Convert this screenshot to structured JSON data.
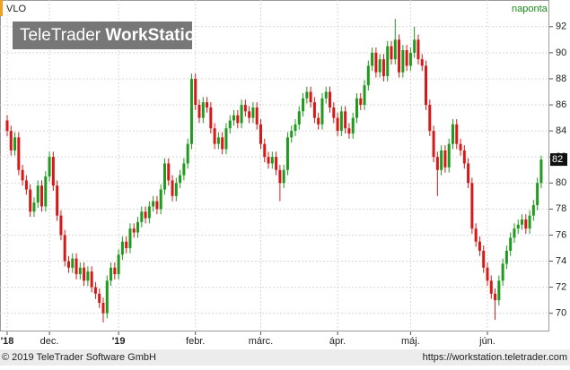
{
  "chart_data": {
    "type": "candlestick",
    "title": "VLO",
    "interval": "naponta",
    "categories": [
      "'18",
      null,
      null,
      null,
      null,
      null,
      null,
      null,
      null,
      null,
      null,
      "dec.",
      null,
      null,
      null,
      null,
      null,
      null,
      null,
      null,
      null,
      null,
      null,
      null,
      null,
      null,
      null,
      null,
      null,
      "'19",
      null,
      null,
      null,
      null,
      null,
      null,
      null,
      null,
      null,
      null,
      null,
      null,
      null,
      null,
      null,
      null,
      null,
      null,
      null,
      "febr.",
      null,
      null,
      null,
      null,
      null,
      null,
      null,
      null,
      null,
      null,
      null,
      null,
      null,
      null,
      null,
      null,
      "márc.",
      null,
      null,
      null,
      null,
      null,
      null,
      null,
      null,
      null,
      null,
      null,
      null,
      null,
      null,
      null,
      null,
      null,
      null,
      null,
      "ápr.",
      null,
      null,
      null,
      null,
      null,
      null,
      null,
      null,
      null,
      null,
      null,
      null,
      null,
      null,
      null,
      null,
      null,
      null,
      "máj.",
      null,
      null,
      null,
      null,
      null,
      null,
      null,
      null,
      null,
      null,
      null,
      null,
      null,
      null,
      null,
      null,
      null,
      null,
      null,
      "jún.",
      null,
      null,
      null,
      null,
      null,
      null,
      null,
      null,
      null,
      null,
      null,
      null,
      null,
      null
    ],
    "open": [
      84.8,
      84.0,
      82.5,
      83.5,
      81.0,
      80.2,
      79.5,
      77.8,
      78.5,
      79.8,
      78.2,
      80.5,
      82.0,
      79.8,
      77.5,
      76.0,
      74.0,
      73.5,
      74.2,
      73.0,
      73.5,
      72.5,
      73.2,
      72.0,
      71.5,
      70.8,
      70.0,
      72.5,
      73.5,
      73.0,
      74.5,
      75.5,
      75.0,
      76.5,
      76.2,
      77.0,
      77.8,
      77.3,
      78.2,
      78.6,
      78.0,
      79.5,
      81.5,
      80.2,
      79.0,
      80.0,
      80.6,
      81.5,
      83.0,
      88.0,
      86.0,
      85.0,
      86.2,
      85.8,
      84.2,
      83.0,
      83.5,
      82.6,
      84.2,
      84.8,
      85.2,
      84.6,
      86.0,
      85.5,
      85.0,
      85.8,
      84.5,
      83.0,
      82.0,
      81.5,
      82.0,
      81.0,
      80.0,
      81.0,
      83.5,
      84.0,
      84.5,
      85.5,
      86.5,
      87.0,
      86.2,
      85.0,
      84.5,
      86.5,
      87.0,
      85.8,
      85.0,
      84.0,
      85.5,
      84.2,
      83.8,
      85.0,
      86.5,
      86.0,
      87.5,
      89.0,
      90.0,
      88.5,
      89.5,
      88.2,
      90.5,
      89.5,
      91.0,
      88.5,
      90.2,
      89.0,
      90.0,
      91.0,
      89.5,
      89.0,
      86.0,
      84.0,
      82.0,
      81.0,
      82.5,
      81.2,
      83.0,
      84.5,
      83.0,
      82.5,
      81.5,
      80.0,
      76.5,
      75.5,
      74.8,
      73.5,
      72.5,
      71.5,
      71.0,
      72.5,
      73.8,
      74.8,
      75.8,
      76.5,
      76.8,
      77.2,
      76.5,
      77.5,
      78.3,
      80.0
    ],
    "high": [
      85.2,
      84.4,
      83.9,
      83.9,
      81.4,
      80.6,
      79.9,
      78.9,
      80.2,
      80.2,
      80.9,
      82.4,
      82.4,
      80.2,
      77.9,
      76.4,
      74.4,
      74.6,
      74.6,
      73.9,
      73.9,
      73.6,
      73.6,
      72.4,
      71.9,
      71.2,
      72.9,
      73.9,
      73.9,
      74.9,
      75.9,
      75.9,
      76.9,
      76.9,
      77.4,
      78.2,
      78.2,
      78.6,
      79.0,
      79.0,
      79.9,
      81.9,
      81.9,
      80.6,
      80.4,
      81.0,
      81.9,
      83.4,
      88.4,
      88.4,
      86.4,
      86.6,
      86.6,
      86.2,
      84.6,
      83.9,
      83.9,
      84.6,
      85.2,
      85.6,
      85.6,
      86.4,
      86.4,
      85.9,
      86.2,
      86.2,
      84.9,
      83.4,
      82.4,
      82.4,
      82.4,
      81.4,
      81.4,
      83.9,
      84.4,
      84.9,
      85.9,
      86.9,
      87.4,
      87.4,
      86.6,
      85.4,
      86.9,
      87.4,
      87.4,
      86.2,
      85.4,
      85.9,
      85.9,
      84.6,
      85.4,
      86.9,
      86.9,
      87.9,
      89.4,
      90.4,
      90.4,
      89.9,
      89.9,
      90.9,
      90.9,
      92.6,
      91.4,
      90.6,
      90.6,
      90.4,
      92.0,
      91.4,
      89.9,
      89.4,
      86.4,
      84.4,
      82.4,
      82.9,
      82.9,
      83.4,
      84.9,
      84.9,
      83.4,
      82.9,
      81.9,
      80.4,
      76.9,
      75.9,
      75.2,
      73.9,
      72.9,
      71.9,
      72.9,
      74.2,
      75.2,
      76.2,
      76.9,
      77.2,
      77.6,
      77.6,
      77.9,
      78.7,
      80.4,
      82.1
    ],
    "low": [
      83.6,
      82.1,
      82.1,
      80.6,
      79.8,
      79.1,
      77.4,
      77.4,
      78.1,
      77.8,
      77.8,
      80.1,
      79.4,
      77.1,
      75.6,
      73.6,
      73.1,
      73.1,
      72.6,
      72.6,
      72.1,
      72.1,
      71.6,
      71.1,
      70.4,
      69.3,
      69.6,
      72.1,
      72.6,
      72.6,
      74.1,
      74.6,
      74.6,
      75.8,
      75.8,
      76.6,
      76.9,
      76.9,
      77.8,
      77.6,
      77.6,
      79.1,
      79.8,
      78.6,
      78.6,
      79.6,
      80.2,
      81.1,
      82.6,
      85.6,
      84.6,
      84.6,
      85.4,
      83.8,
      82.6,
      82.6,
      82.2,
      82.2,
      83.8,
      84.4,
      84.2,
      84.2,
      85.1,
      84.6,
      84.6,
      84.1,
      82.6,
      81.6,
      81.1,
      81.1,
      80.6,
      78.6,
      79.6,
      80.6,
      83.1,
      83.6,
      84.1,
      85.1,
      86.1,
      85.8,
      84.6,
      84.1,
      84.1,
      86.1,
      85.4,
      84.6,
      83.6,
      83.6,
      83.8,
      83.4,
      83.4,
      84.6,
      85.6,
      85.6,
      87.1,
      88.6,
      88.1,
      88.1,
      87.8,
      87.8,
      89.1,
      89.1,
      88.1,
      88.1,
      88.6,
      88.6,
      89.6,
      89.1,
      88.6,
      85.6,
      83.6,
      81.6,
      79.0,
      80.6,
      80.8,
      80.8,
      82.6,
      82.6,
      82.1,
      81.1,
      79.6,
      76.1,
      75.1,
      74.4,
      73.1,
      72.1,
      71.1,
      69.5,
      70.6,
      72.1,
      73.4,
      74.4,
      75.4,
      76.1,
      76.4,
      76.1,
      76.1,
      77.1,
      77.9,
      79.6
    ],
    "close": [
      84.0,
      82.5,
      83.5,
      81.0,
      80.2,
      79.5,
      77.8,
      78.5,
      79.8,
      78.2,
      80.5,
      82.0,
      79.8,
      77.5,
      76.0,
      74.0,
      73.5,
      74.2,
      73.0,
      73.5,
      72.5,
      73.2,
      72.0,
      71.5,
      70.8,
      70.0,
      72.5,
      73.5,
      73.0,
      74.5,
      75.5,
      75.0,
      76.5,
      76.2,
      77.0,
      77.8,
      77.3,
      78.2,
      78.6,
      78.0,
      79.5,
      81.5,
      80.2,
      79.0,
      80.0,
      80.6,
      81.5,
      83.0,
      88.0,
      86.0,
      85.0,
      86.2,
      85.8,
      84.2,
      83.0,
      83.5,
      82.6,
      84.2,
      84.8,
      85.2,
      84.6,
      86.0,
      85.5,
      85.0,
      85.8,
      84.5,
      83.0,
      82.0,
      81.5,
      82.0,
      81.0,
      80.0,
      81.0,
      83.5,
      84.0,
      84.5,
      85.5,
      86.5,
      87.0,
      86.2,
      85.0,
      84.5,
      86.5,
      87.0,
      85.8,
      85.0,
      84.0,
      85.5,
      84.2,
      83.8,
      85.0,
      86.5,
      86.0,
      87.5,
      89.0,
      90.0,
      88.5,
      89.5,
      88.2,
      90.5,
      89.5,
      91.0,
      88.5,
      90.2,
      89.0,
      90.0,
      91.0,
      89.5,
      89.0,
      86.0,
      84.0,
      82.0,
      81.0,
      82.5,
      81.2,
      83.0,
      84.5,
      83.0,
      82.5,
      81.5,
      80.0,
      76.5,
      75.5,
      74.8,
      73.5,
      72.5,
      71.5,
      71.0,
      72.5,
      73.8,
      74.8,
      75.8,
      76.5,
      76.8,
      77.2,
      76.5,
      77.5,
      78.3,
      80.0,
      81.8
    ],
    "up_color": "#1f9a1f",
    "down_color": "#d81818",
    "last_value": {
      "value": 81.8,
      "label": "82"
    },
    "ylim": [
      68.6,
      94.05
    ],
    "yticks": [
      70,
      72,
      74,
      76,
      78,
      80,
      82,
      84,
      86,
      88,
      90,
      92
    ],
    "grid": true
  },
  "logo": {
    "light": "TeleTrader",
    "bold": "WorkStation"
  },
  "footer": {
    "copyright": "© 2019 TeleTrader Software GmbH",
    "url": "https://workstation.teletrader.com"
  }
}
